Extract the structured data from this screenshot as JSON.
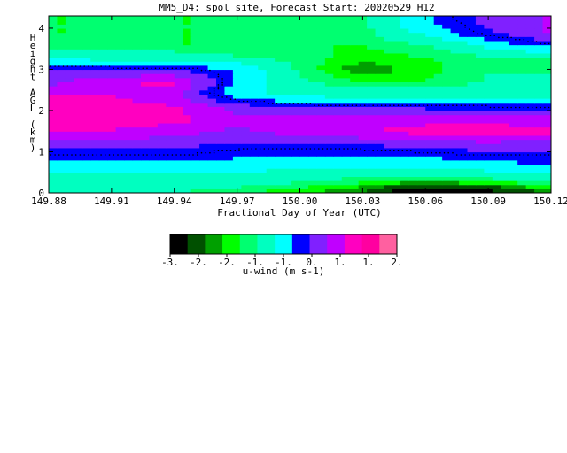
{
  "chart_data": {
    "type": "heatmap",
    "title": "MM5_D4: spol site,  Forecast Start: 20020529 H12",
    "xlabel": "Fractional Day of Year (UTC)",
    "ylabel": "Height AGL (km)",
    "xlim": [
      149.88,
      150.12
    ],
    "ylim": [
      0,
      4.3
    ],
    "x_ticks": [
      "149.88",
      "149.91",
      "149.94",
      "149.97",
      "150.00",
      "150.03",
      "150.06",
      "150.09",
      "150.12"
    ],
    "y_ticks": [
      "0",
      "1",
      "2",
      "3",
      "4"
    ],
    "x": [
      149.88,
      149.91,
      149.94,
      149.97,
      150.0,
      150.03,
      150.06,
      150.09,
      150.12
    ],
    "y": [
      0.05,
      0.3,
      0.6,
      0.9,
      1.2,
      1.5,
      1.8,
      2.1,
      2.4,
      2.7,
      3.0,
      3.3,
      3.6,
      3.9,
      4.2
    ],
    "z": [
      [
        -1.2,
        -1.2,
        -1.2,
        -1.4,
        -1.6,
        -2.0,
        -3.0,
        -2.6,
        -1.8
      ],
      [
        -1.0,
        -1.0,
        -1.0,
        -1.0,
        -1.2,
        -1.4,
        -1.6,
        -1.4,
        -1.2
      ],
      [
        -0.5,
        -0.6,
        -0.6,
        -0.6,
        -0.8,
        -0.8,
        -0.8,
        -0.6,
        -0.4
      ],
      [
        0.0,
        0.0,
        0.0,
        -0.2,
        -0.3,
        -0.3,
        -0.2,
        0.0,
        0.0
      ],
      [
        0.5,
        0.5,
        0.4,
        0.2,
        0.2,
        0.3,
        0.5,
        0.6,
        0.5
      ],
      [
        1.2,
        1.2,
        1.0,
        0.6,
        1.0,
        1.2,
        1.5,
        1.6,
        1.4
      ],
      [
        1.6,
        1.6,
        1.4,
        1.0,
        1.3,
        1.1,
        1.0,
        1.0,
        0.9
      ],
      [
        1.5,
        1.5,
        1.3,
        0.5,
        0.2,
        0.1,
        0.1,
        0.0,
        0.0
      ],
      [
        1.2,
        1.2,
        0.8,
        -0.6,
        -0.9,
        -1.0,
        -1.0,
        -1.0,
        -0.9
      ],
      [
        0.6,
        1.2,
        1.4,
        -0.4,
        -1.2,
        -1.5,
        -1.5,
        -1.2,
        -1.2
      ],
      [
        0.2,
        0.2,
        0.2,
        -0.3,
        -1.3,
        -2.0,
        -1.6,
        -1.3,
        -1.3
      ],
      [
        -0.8,
        -1.0,
        -1.0,
        -1.2,
        -1.4,
        -1.6,
        -1.5,
        -1.3,
        -1.3
      ],
      [
        -1.4,
        -1.4,
        -1.5,
        -1.5,
        -1.5,
        -1.5,
        -1.3,
        -0.6,
        0.0
      ],
      [
        -1.5,
        -1.5,
        -1.5,
        -1.5,
        -1.5,
        -1.4,
        -0.6,
        0.2,
        0.8
      ],
      [
        -1.5,
        -1.5,
        -1.5,
        -1.5,
        -1.4,
        -1.3,
        -0.3,
        0.4,
        0.8
      ]
    ],
    "colorbar": {
      "label": "u-wind (m s-1)",
      "tick_labels": [
        "-3.",
        "-2.",
        "-2.",
        "-1.",
        "-1.",
        "0.",
        "1.",
        "1.",
        "2."
      ],
      "levels": [
        -3.0,
        -2.5,
        -2.0,
        -1.75,
        -1.5,
        -1.25,
        -0.75,
        -0.25,
        0.25,
        0.75,
        1.25,
        1.75,
        2.0
      ],
      "colors": [
        "#000000",
        "#005000",
        "#00a000",
        "#00ff00",
        "#00ff70",
        "#00ffc0",
        "#00ffff",
        "#0000ff",
        "#8020ff",
        "#c000ff",
        "#ff00c0",
        "#ff00a0",
        "#ff60a0"
      ]
    },
    "zero_contour_label": "0",
    "grid": false
  }
}
